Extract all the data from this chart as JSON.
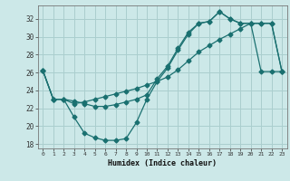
{
  "xlabel": "Humidex (Indice chaleur)",
  "bg_color": "#cce8e8",
  "grid_color": "#aacece",
  "line_color": "#1a7070",
  "xlim": [
    -0.5,
    23.5
  ],
  "ylim": [
    17.5,
    33.5
  ],
  "yticks": [
    18,
    20,
    22,
    24,
    26,
    28,
    30,
    32
  ],
  "xticks": [
    0,
    1,
    2,
    3,
    4,
    5,
    6,
    7,
    8,
    9,
    10,
    11,
    12,
    13,
    14,
    15,
    16,
    17,
    18,
    19,
    20,
    21,
    22,
    23
  ],
  "line1_x": [
    0,
    1,
    2,
    3,
    4,
    5,
    6,
    7,
    8,
    9,
    10,
    11,
    12,
    13,
    14,
    15,
    16,
    17,
    18,
    19,
    20,
    21,
    22,
    23
  ],
  "line1_y": [
    26.2,
    23.0,
    23.0,
    21.0,
    19.2,
    18.7,
    18.4,
    18.4,
    18.6,
    20.4,
    23.0,
    25.0,
    26.5,
    28.5,
    30.3,
    31.5,
    31.7,
    32.8,
    32.0,
    31.5,
    31.5,
    31.5,
    31.5,
    26.1
  ],
  "line2_x": [
    0,
    1,
    2,
    3,
    4,
    5,
    6,
    7,
    8,
    9,
    10,
    11,
    12,
    13,
    14,
    15,
    16,
    17,
    18,
    19,
    20,
    21,
    22,
    23
  ],
  "line2_y": [
    26.2,
    23.0,
    23.0,
    22.8,
    22.5,
    22.2,
    22.2,
    22.4,
    22.7,
    23.0,
    23.5,
    25.3,
    26.7,
    28.7,
    30.5,
    31.5,
    31.7,
    32.8,
    32.0,
    31.5,
    31.5,
    31.5,
    31.5,
    26.1
  ],
  "line3_x": [
    0,
    1,
    2,
    3,
    4,
    5,
    6,
    7,
    8,
    9,
    10,
    11,
    12,
    13,
    14,
    15,
    16,
    17,
    18,
    19,
    20,
    21,
    22,
    23
  ],
  "line3_y": [
    26.2,
    23.0,
    23.0,
    22.5,
    22.7,
    23.0,
    23.3,
    23.6,
    23.9,
    24.2,
    24.6,
    25.0,
    25.5,
    26.3,
    27.3,
    28.3,
    29.0,
    29.7,
    30.3,
    30.9,
    31.5,
    26.1,
    26.1,
    26.1
  ]
}
